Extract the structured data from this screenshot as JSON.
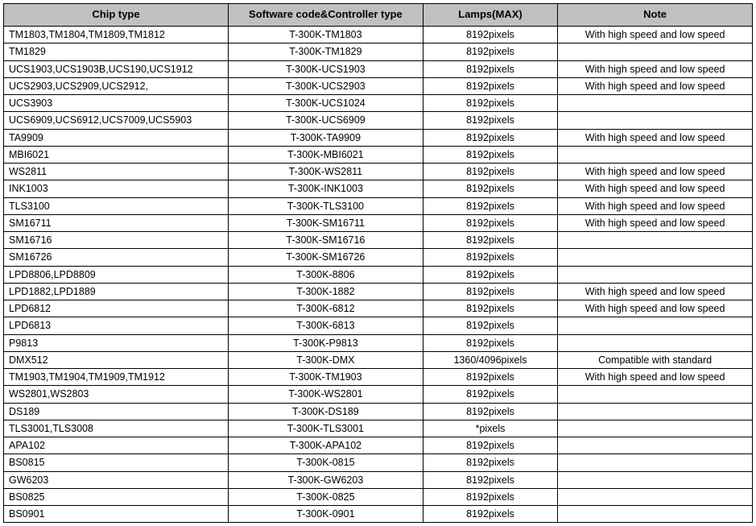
{
  "table": {
    "columns": [
      "Chip type",
      "Software code&Controller type",
      "Lamps(MAX)",
      "Note"
    ],
    "header_bg": "#c0c0c0",
    "border_color": "#000000",
    "font_family": "Arial",
    "header_fontsize": 13,
    "cell_fontsize": 12.5,
    "rows": [
      {
        "chip": "TM1803,TM1804,TM1809,TM1812",
        "code": "T-300K-TM1803",
        "lamps": "8192pixels",
        "note": "With high speed and low speed"
      },
      {
        "chip": "TM1829",
        "code": "T-300K-TM1829",
        "lamps": "8192pixels",
        "note": ""
      },
      {
        "chip": "UCS1903,UCS1903B,UCS190,UCS1912",
        "code": "T-300K-UCS1903",
        "lamps": "8192pixels",
        "note": "With high speed and low speed"
      },
      {
        "chip": "UCS2903,UCS2909,UCS2912,",
        "code": "T-300K-UCS2903",
        "lamps": "8192pixels",
        "note": "With high speed and low speed"
      },
      {
        "chip": "UCS3903",
        "code": "T-300K-UCS1024",
        "lamps": "8192pixels",
        "note": ""
      },
      {
        "chip": "UCS6909,UCS6912,UCS7009,UCS5903",
        "code": "T-300K-UCS6909",
        "lamps": "8192pixels",
        "note": ""
      },
      {
        "chip": "TA9909",
        "code": "T-300K-TA9909",
        "lamps": "8192pixels",
        "note": "With high speed and low speed"
      },
      {
        "chip": "MBI6021",
        "code": "T-300K-MBI6021",
        "lamps": "8192pixels",
        "note": ""
      },
      {
        "chip": "WS2811",
        "code": "T-300K-WS2811",
        "lamps": "8192pixels",
        "note": "With high speed and low speed"
      },
      {
        "chip": "INK1003",
        "code": "T-300K-INK1003",
        "lamps": "8192pixels",
        "note": "With high speed and low speed"
      },
      {
        "chip": "TLS3100",
        "code": "T-300K-TLS3100",
        "lamps": "8192pixels",
        "note": "With high speed and low speed"
      },
      {
        "chip": "SM16711",
        "code": "T-300K-SM16711",
        "lamps": "8192pixels",
        "note": "With high speed and low speed"
      },
      {
        "chip": "SM16716",
        "code": "T-300K-SM16716",
        "lamps": "8192pixels",
        "note": ""
      },
      {
        "chip": "SM16726",
        "code": "T-300K-SM16726",
        "lamps": "8192pixels",
        "note": ""
      },
      {
        "chip": "LPD8806,LPD8809",
        "code": "T-300K-8806",
        "lamps": "8192pixels",
        "note": ""
      },
      {
        "chip": "LPD1882,LPD1889",
        "code": "T-300K-1882",
        "lamps": "8192pixels",
        "note": "With high speed and low speed"
      },
      {
        "chip": "LPD6812",
        "code": "T-300K-6812",
        "lamps": "8192pixels",
        "note": "With high speed and low speed"
      },
      {
        "chip": "LPD6813",
        "code": "T-300K-6813",
        "lamps": "8192pixels",
        "note": ""
      },
      {
        "chip": "P9813",
        "code": "T-300K-P9813",
        "lamps": "8192pixels",
        "note": ""
      },
      {
        "chip": "DMX512",
        "code": "T-300K-DMX",
        "lamps": "1360/4096pixels",
        "note": "Compatible with standard"
      },
      {
        "chip": "TM1903,TM1904,TM1909,TM1912",
        "code": "T-300K-TM1903",
        "lamps": "8192pixels",
        "note": "With high speed and low speed"
      },
      {
        "chip": "WS2801,WS2803",
        "code": "T-300K-WS2801",
        "lamps": "8192pixels",
        "note": ""
      },
      {
        "chip": "DS189",
        "code": "T-300K-DS189",
        "lamps": "8192pixels",
        "note": ""
      },
      {
        "chip": "TLS3001,TLS3008",
        "code": "T-300K-TLS3001",
        "lamps": "*pixels",
        "note": ""
      },
      {
        "chip": "APA102",
        "code": "T-300K-APA102",
        "lamps": "8192pixels",
        "note": ""
      },
      {
        "chip": "BS0815",
        "code": "T-300K-0815",
        "lamps": "8192pixels",
        "note": ""
      },
      {
        "chip": "GW6203",
        "code": "T-300K-GW6203",
        "lamps": "8192pixels",
        "note": ""
      },
      {
        "chip": "BS0825",
        "code": "T-300K-0825",
        "lamps": "8192pixels",
        "note": ""
      },
      {
        "chip": "BS0901",
        "code": "T-300K-0901",
        "lamps": "8192pixels",
        "note": ""
      }
    ]
  }
}
